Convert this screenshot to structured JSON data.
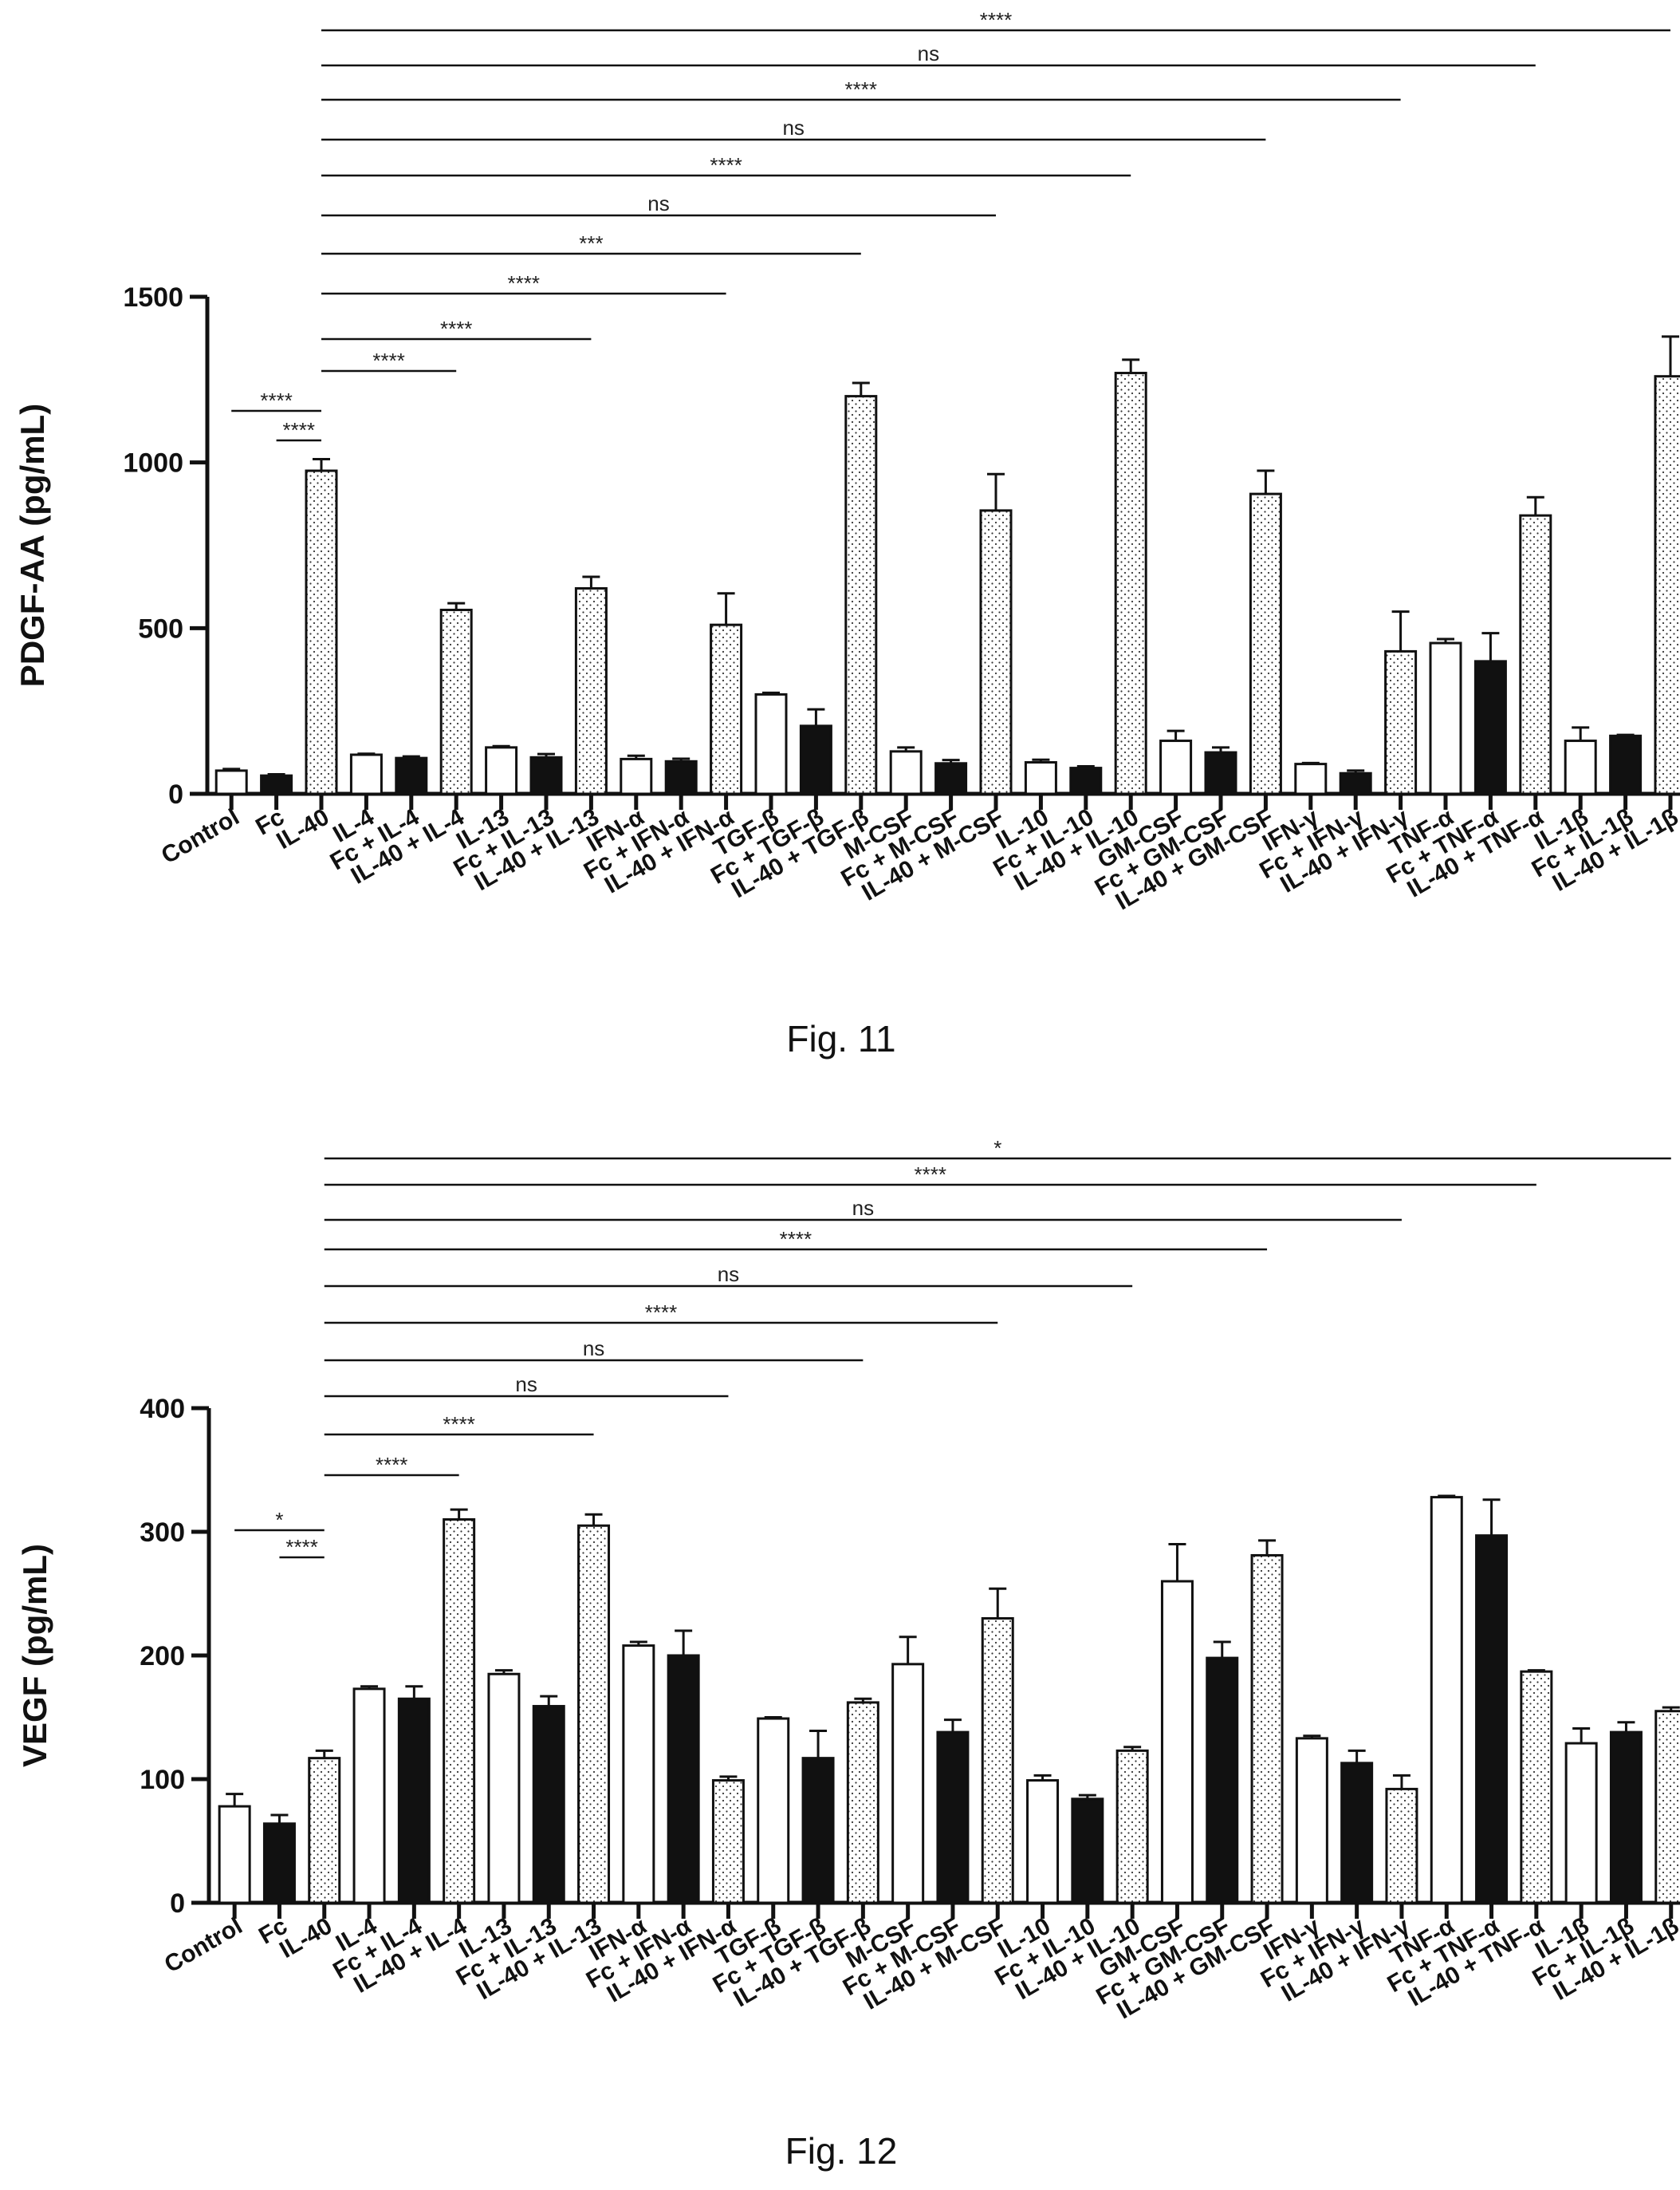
{
  "chart_data": [
    {
      "type": "bar",
      "caption": "Fig. 11",
      "ylabel": "PDGF-AA (pg/mL)",
      "ylim": [
        0,
        1500
      ],
      "yticks": [
        0,
        500,
        1000,
        1500
      ],
      "categories": [
        "Control",
        "Fc",
        "IL-40",
        "IL-4",
        "Fc + IL-4",
        "IL-40 + IL-4",
        "IL-13",
        "Fc + IL-13",
        "IL-40 + IL-13",
        "IFN-α",
        "Fc + IFN-α",
        "IL-40 + IFN-α",
        "TGF-β",
        "Fc + TGF-β",
        "IL-40 + TGF-β",
        "M-CSF",
        "Fc + M-CSF",
        "IL-40 + M-CSF",
        "IL-10",
        "Fc + IL-10",
        "IL-40 + IL-10",
        "GM-CSF",
        "Fc + GM-CSF",
        "IL-40 + GM-CSF",
        "IFN-γ",
        "Fc + IFN-γ",
        "IL-40 + IFN-γ",
        "TNF-α",
        "Fc + TNF-α",
        "IL-40 + TNF-α",
        "IL-1β",
        "Fc + IL-1β",
        "IL-40 + IL-1β"
      ],
      "values": [
        70,
        55,
        975,
        118,
        108,
        555,
        140,
        110,
        620,
        105,
        98,
        510,
        300,
        205,
        1200,
        128,
        92,
        855,
        95,
        78,
        1270,
        160,
        125,
        905,
        90,
        62,
        430,
        455,
        400,
        840,
        160,
        175,
        1260
      ],
      "errors": [
        5,
        4,
        35,
        3,
        5,
        20,
        4,
        10,
        35,
        10,
        8,
        95,
        5,
        50,
        40,
        12,
        10,
        110,
        8,
        5,
        40,
        30,
        15,
        70,
        3,
        8,
        120,
        12,
        85,
        55,
        40,
        3,
        120
      ],
      "fills": [
        "open",
        "black",
        "dotted",
        "open",
        "black",
        "dotted",
        "open",
        "black",
        "dotted",
        "open",
        "black",
        "dotted",
        "open",
        "black",
        "dotted",
        "open",
        "black",
        "dotted",
        "open",
        "black",
        "dotted",
        "open",
        "black",
        "dotted",
        "open",
        "black",
        "dotted",
        "open",
        "black",
        "dotted",
        "open",
        "black",
        "dotted"
      ],
      "comparisons": [
        {
          "from": 0,
          "to": 2,
          "label": "****"
        },
        {
          "from": 1,
          "to": 2,
          "label": "****"
        },
        {
          "from": 2,
          "to": 5,
          "label": "****"
        },
        {
          "from": 2,
          "to": 8,
          "label": "****"
        },
        {
          "from": 2,
          "to": 11,
          "label": "****"
        },
        {
          "from": 2,
          "to": 14,
          "label": "***"
        },
        {
          "from": 2,
          "to": 17,
          "label": "ns"
        },
        {
          "from": 2,
          "to": 20,
          "label": "****"
        },
        {
          "from": 2,
          "to": 23,
          "label": "ns"
        },
        {
          "from": 2,
          "to": 26,
          "label": "****"
        },
        {
          "from": 2,
          "to": 29,
          "label": "ns"
        },
        {
          "from": 2,
          "to": 32,
          "label": "****"
        }
      ]
    },
    {
      "type": "bar",
      "caption": "Fig. 12",
      "ylabel": "VEGF (pg/mL)",
      "ylim": [
        0,
        400
      ],
      "yticks": [
        0,
        100,
        200,
        300,
        400
      ],
      "categories": [
        "Control",
        "Fc",
        "IL-40",
        "IL-4",
        "Fc + IL-4",
        "IL-40 + IL-4",
        "IL-13",
        "Fc + IL-13",
        "IL-40 + IL-13",
        "IFN-α",
        "Fc + IFN-α",
        "IL-40 + IFN-α",
        "TGF-β",
        "Fc + TGF-β",
        "IL-40 + TGF-β",
        "M-CSF",
        "Fc + M-CSF",
        "IL-40 + M-CSF",
        "IL-10",
        "Fc + IL-10",
        "IL-40 + IL-10",
        "GM-CSF",
        "Fc + GM-CSF",
        "IL-40 + GM-CSF",
        "IFN-γ",
        "Fc + IFN-γ",
        "IL-40 + IFN-γ",
        "TNF-α",
        "Fc + TNF-α",
        "IL-40 + TNF-α",
        "IL-1β",
        "Fc + IL-1β",
        "IL-40 + IL-1β"
      ],
      "values": [
        78,
        64,
        117,
        173,
        165,
        310,
        185,
        159,
        305,
        208,
        200,
        99,
        149,
        117,
        162,
        193,
        138,
        230,
        99,
        84,
        123,
        260,
        198,
        281,
        133,
        113,
        92,
        328,
        297,
        187,
        129,
        138,
        155
      ],
      "errors": [
        10,
        7,
        6,
        2,
        10,
        8,
        3,
        8,
        9,
        3,
        20,
        3,
        1,
        22,
        3,
        22,
        10,
        24,
        4,
        3,
        3,
        30,
        13,
        12,
        2,
        10,
        11,
        1,
        29,
        1,
        12,
        8,
        3
      ],
      "fills": [
        "open",
        "black",
        "dotted",
        "open",
        "black",
        "dotted",
        "open",
        "black",
        "dotted",
        "open",
        "black",
        "dotted",
        "open",
        "black",
        "dotted",
        "open",
        "black",
        "dotted",
        "open",
        "black",
        "dotted",
        "open",
        "black",
        "dotted",
        "open",
        "black",
        "dotted",
        "open",
        "black",
        "dotted",
        "open",
        "black",
        "dotted"
      ],
      "comparisons": [
        {
          "from": 0,
          "to": 2,
          "label": "*"
        },
        {
          "from": 1,
          "to": 2,
          "label": "****"
        },
        {
          "from": 2,
          "to": 5,
          "label": "****"
        },
        {
          "from": 2,
          "to": 8,
          "label": "****"
        },
        {
          "from": 2,
          "to": 11,
          "label": "ns"
        },
        {
          "from": 2,
          "to": 14,
          "label": "ns"
        },
        {
          "from": 2,
          "to": 17,
          "label": "****"
        },
        {
          "from": 2,
          "to": 20,
          "label": "ns"
        },
        {
          "from": 2,
          "to": 23,
          "label": "****"
        },
        {
          "from": 2,
          "to": 26,
          "label": "ns"
        },
        {
          "from": 2,
          "to": 29,
          "label": "****"
        },
        {
          "from": 2,
          "to": 32,
          "label": "*"
        }
      ]
    }
  ]
}
